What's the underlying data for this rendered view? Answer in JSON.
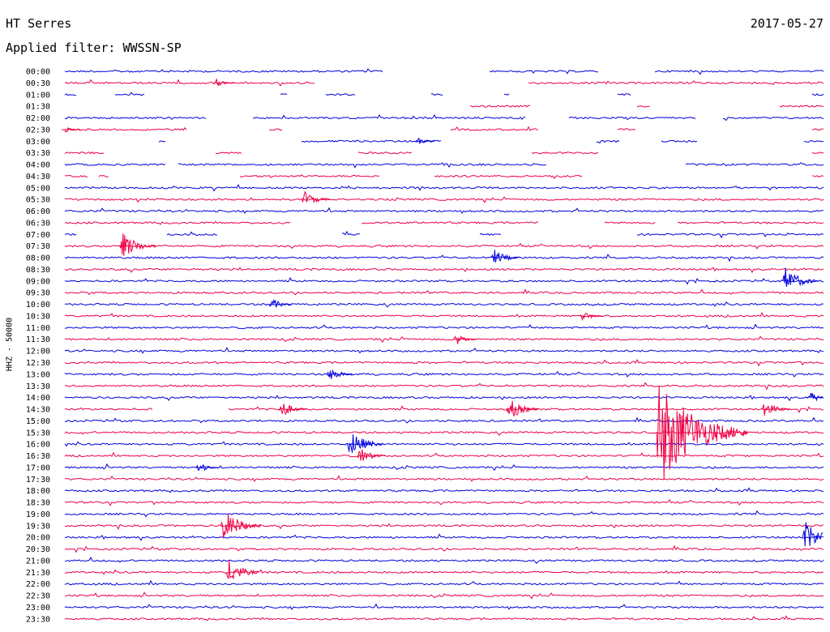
{
  "header": {
    "station": "HT Serres",
    "date": "2017-05-27",
    "filter": "Applied filter: WWSSN-SP",
    "channel": "HHZ - 50000"
  },
  "colors": {
    "odd_trace": "#0000dd",
    "even_trace": "#ee0044"
  },
  "chart_data": {
    "type": "line",
    "title": "HT Serres",
    "subtitle": "Applied filter: WWSSN-SP",
    "ylabel": "HHZ - 50000",
    "row_labels": [
      "00:00",
      "00:30",
      "01:00",
      "01:30",
      "02:00",
      "02:30",
      "03:00",
      "03:30",
      "04:00",
      "04:30",
      "05:00",
      "05:30",
      "06:00",
      "06:30",
      "07:00",
      "07:30",
      "08:00",
      "08:30",
      "09:00",
      "09:30",
      "10:00",
      "10:30",
      "11:00",
      "11:30",
      "12:00",
      "12:30",
      "13:00",
      "13:30",
      "14:00",
      "14:30",
      "15:00",
      "15:30",
      "16:00",
      "16:30",
      "17:00",
      "17:30",
      "18:00",
      "18:30",
      "19:00",
      "19:30",
      "20:00",
      "20:30",
      "21:00",
      "21:30",
      "22:00",
      "22:30",
      "23:00",
      "23:30"
    ],
    "row_minutes": 30,
    "events": [
      {
        "row": "00:30",
        "minute": 6,
        "amplitude": 7
      },
      {
        "row": "02:30",
        "minute": 0,
        "amplitude": 6
      },
      {
        "row": "03:00",
        "minute": 14,
        "amplitude": 6
      },
      {
        "row": "05:30",
        "minute": 9.5,
        "amplitude": 14
      },
      {
        "row": "07:30",
        "minute": 2.3,
        "amplitude": 22
      },
      {
        "row": "08:00",
        "minute": 17,
        "amplitude": 14
      },
      {
        "row": "09:00",
        "minute": 28.5,
        "amplitude": 22
      },
      {
        "row": "10:00",
        "minute": 8.2,
        "amplitude": 10
      },
      {
        "row": "10:30",
        "minute": 20.5,
        "amplitude": 9
      },
      {
        "row": "11:30",
        "minute": 15.5,
        "amplitude": 10
      },
      {
        "row": "13:00",
        "minute": 10.5,
        "amplitude": 12
      },
      {
        "row": "14:00",
        "minute": 29.5,
        "amplitude": 10
      },
      {
        "row": "14:30",
        "minute": 8.6,
        "amplitude": 14
      },
      {
        "row": "14:30",
        "minute": 17.6,
        "amplitude": 18
      },
      {
        "row": "14:30",
        "minute": 27.7,
        "amplitude": 14
      },
      {
        "row": "15:30",
        "minute": 23.5,
        "amplitude": 75
      },
      {
        "row": "16:00",
        "minute": 11.3,
        "amplitude": 22
      },
      {
        "row": "16:30",
        "minute": 11.7,
        "amplitude": 14
      },
      {
        "row": "17:00",
        "minute": 5.3,
        "amplitude": 10
      },
      {
        "row": "19:30",
        "minute": 6.3,
        "amplitude": 26
      },
      {
        "row": "20:00",
        "minute": 29.3,
        "amplitude": 24
      },
      {
        "row": "21:30",
        "minute": 6.5,
        "amplitude": 20
      }
    ]
  }
}
